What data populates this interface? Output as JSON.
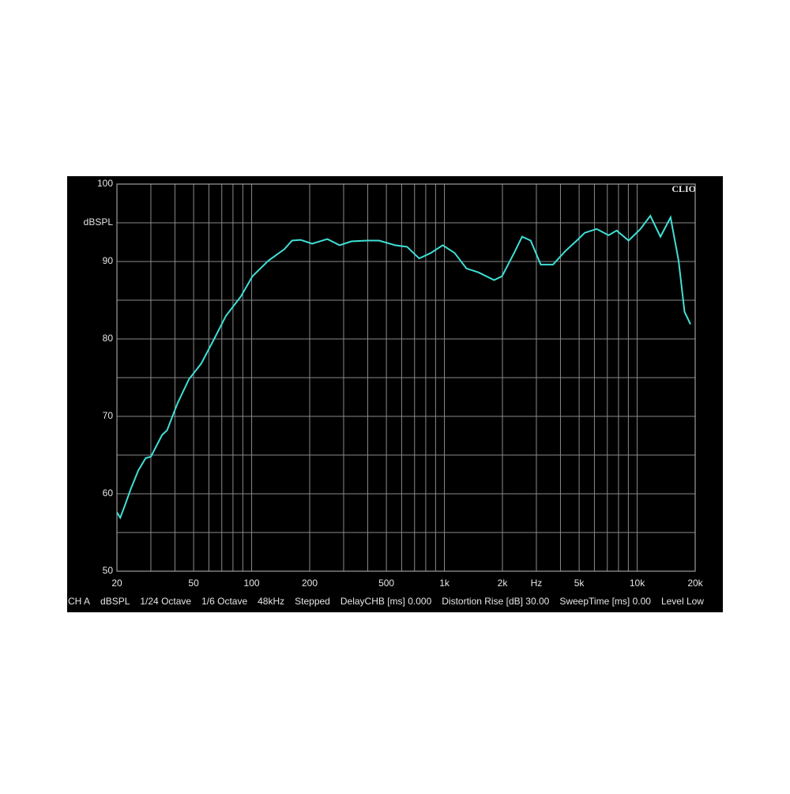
{
  "chart_data": {
    "type": "line",
    "brand": "CLIO",
    "ylabel": "dBSPL",
    "log_x": true,
    "xlim": [
      20,
      20000
    ],
    "ylim": [
      50,
      100
    ],
    "xticks": [
      20,
      50,
      100,
      200,
      500,
      {
        "value": 1000,
        "label": "1k"
      },
      {
        "value": 2000,
        "label": "2k"
      },
      {
        "value": 3000,
        "label": "Hz"
      },
      {
        "value": 5000,
        "label": "5k"
      },
      {
        "value": 10000,
        "label": "10k"
      },
      {
        "value": 20000,
        "label": "20k"
      }
    ],
    "yticks": [
      50,
      60,
      70,
      80,
      90,
      100
    ],
    "xgrid": [
      20,
      30,
      40,
      50,
      60,
      70,
      80,
      90,
      100,
      200,
      300,
      400,
      500,
      600,
      700,
      800,
      900,
      1000,
      2000,
      3000,
      4000,
      5000,
      6000,
      7000,
      8000,
      9000,
      10000,
      20000
    ],
    "ygrid": [
      50,
      55,
      60,
      65,
      70,
      75,
      80,
      85,
      90,
      95,
      100
    ],
    "grid": true,
    "footer": [
      "CH A",
      "dBSPL",
      "1/24 Octave",
      "1/6 Octave",
      "48kHz",
      "Stepped",
      "DelayCHB [ms] 0.000",
      "Distortion Rise [dB] 30.00",
      "SweepTime [ms] 0.00",
      "Level Low"
    ],
    "series": [
      {
        "color": "#3fe0d6",
        "x": [
          20,
          20.8,
          22,
          23.5,
          25.8,
          28.2,
          30,
          34.3,
          36.4,
          41.3,
          47.3,
          54.7,
          63.6,
          73.6,
          88,
          101,
          122,
          148,
          162,
          179,
          206,
          247,
          286,
          329,
          397,
          458,
          555,
          640,
          740,
          850,
          980,
          1130,
          1300,
          1500,
          1810,
          1990,
          2300,
          2530,
          2800,
          3160,
          3660,
          4220,
          4860,
          5340,
          6160,
          7110,
          7830,
          9030,
          10400,
          11700,
          13200,
          14900,
          16400,
          17600,
          18900
        ],
        "values": [
          57.6,
          56.9,
          58.5,
          60.5,
          63,
          64.6,
          64.8,
          67.6,
          68.2,
          71.7,
          74.8,
          76.8,
          79.9,
          83,
          85.5,
          88.1,
          90.1,
          91.6,
          92.7,
          92.8,
          92.3,
          92.9,
          92.1,
          92.6,
          92.7,
          92.7,
          92.1,
          91.9,
          90.4,
          91.1,
          92.1,
          91.1,
          89.1,
          88.6,
          87.6,
          88.1,
          91.1,
          93.2,
          92.7,
          89.6,
          89.6,
          91.3,
          92.7,
          93.7,
          94.2,
          93.4,
          94,
          92.7,
          94.2,
          95.9,
          93.2,
          95.7,
          90.1,
          83.5,
          81.9
        ]
      }
    ]
  }
}
